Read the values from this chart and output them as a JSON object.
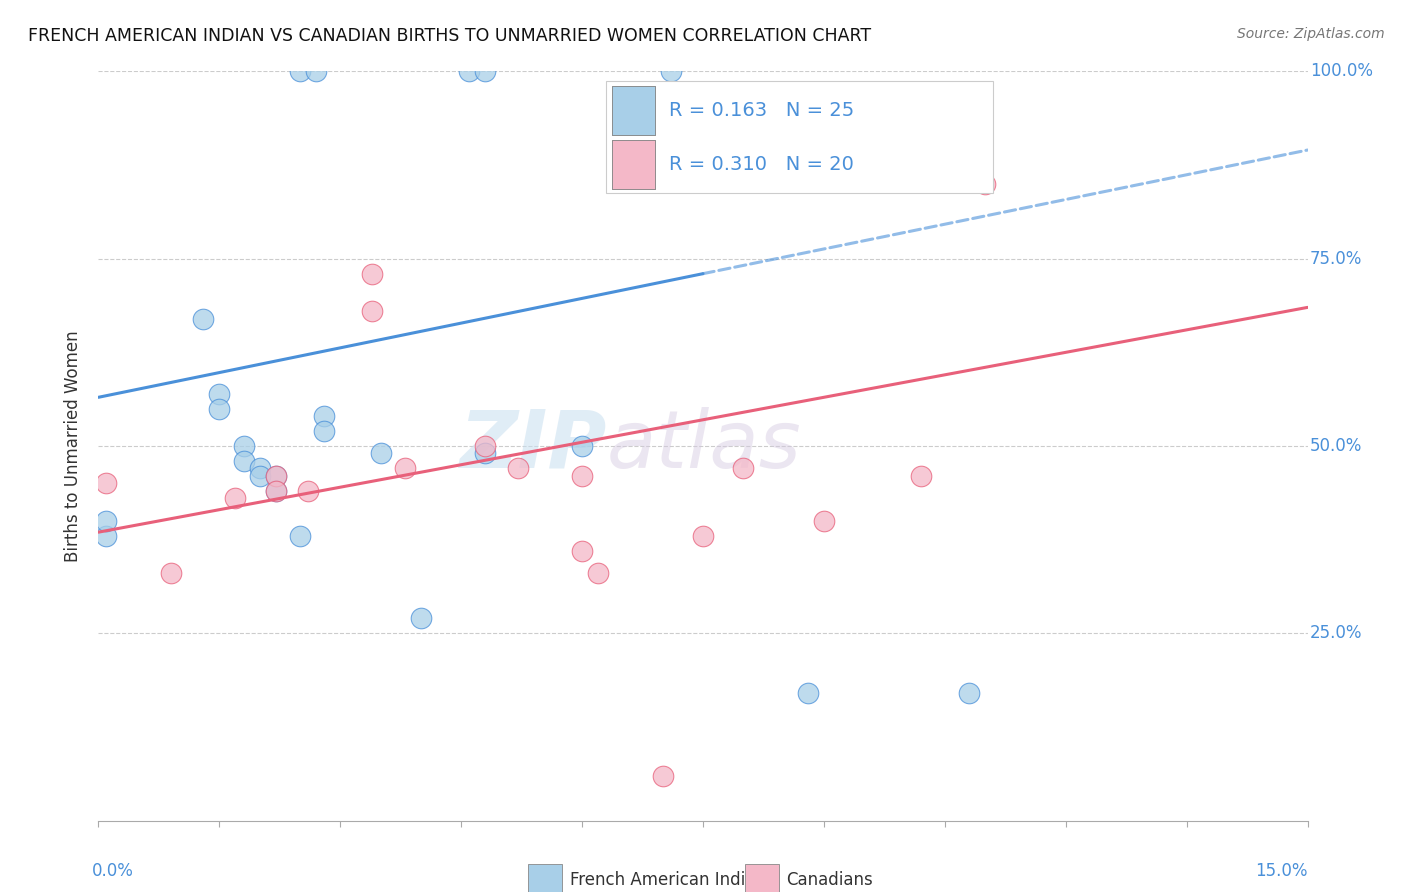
{
  "title": "FRENCH AMERICAN INDIAN VS CANADIAN BIRTHS TO UNMARRIED WOMEN CORRELATION CHART",
  "source": "Source: ZipAtlas.com",
  "ylabel": "Births to Unmarried Women",
  "watermark": "ZIPatlas",
  "legend_label1": "French American Indians",
  "legend_label2": "Canadians",
  "blue_color": "#a8cfe8",
  "pink_color": "#f4b8c8",
  "blue_line_color": "#4a90d9",
  "pink_line_color": "#e8607a",
  "blue_scatter": [
    [
      0.001,
      0.38
    ],
    [
      0.001,
      0.4
    ],
    [
      0.013,
      0.67
    ],
    [
      0.015,
      0.57
    ],
    [
      0.015,
      0.55
    ],
    [
      0.018,
      0.5
    ],
    [
      0.018,
      0.48
    ],
    [
      0.02,
      0.47
    ],
    [
      0.02,
      0.46
    ],
    [
      0.022,
      0.46
    ],
    [
      0.022,
      0.44
    ],
    [
      0.025,
      0.38
    ],
    [
      0.028,
      0.54
    ],
    [
      0.028,
      0.52
    ],
    [
      0.035,
      0.49
    ],
    [
      0.048,
      0.49
    ],
    [
      0.06,
      0.5
    ],
    [
      0.025,
      1.0
    ],
    [
      0.027,
      1.0
    ],
    [
      0.046,
      1.0
    ],
    [
      0.048,
      1.0
    ],
    [
      0.071,
      1.0
    ],
    [
      0.04,
      0.27
    ],
    [
      0.088,
      0.17
    ],
    [
      0.108,
      0.17
    ]
  ],
  "pink_scatter": [
    [
      0.001,
      0.45
    ],
    [
      0.009,
      0.33
    ],
    [
      0.017,
      0.43
    ],
    [
      0.022,
      0.46
    ],
    [
      0.022,
      0.44
    ],
    [
      0.026,
      0.44
    ],
    [
      0.034,
      0.68
    ],
    [
      0.034,
      0.73
    ],
    [
      0.038,
      0.47
    ],
    [
      0.048,
      0.5
    ],
    [
      0.052,
      0.47
    ],
    [
      0.06,
      0.46
    ],
    [
      0.08,
      0.47
    ],
    [
      0.102,
      0.46
    ],
    [
      0.11,
      0.85
    ],
    [
      0.06,
      0.36
    ],
    [
      0.062,
      0.33
    ],
    [
      0.075,
      0.38
    ],
    [
      0.09,
      0.4
    ],
    [
      0.07,
      0.06
    ]
  ],
  "xmin": 0.0,
  "xmax": 0.15,
  "ymin": 0.0,
  "ymax": 1.0,
  "blue_line_x0": 0.0,
  "blue_line_y0": 0.565,
  "blue_line_x1": 0.075,
  "blue_line_y1": 0.73,
  "pink_line_x0": 0.0,
  "pink_line_y0": 0.385,
  "pink_line_x1": 0.15,
  "pink_line_y1": 0.685
}
